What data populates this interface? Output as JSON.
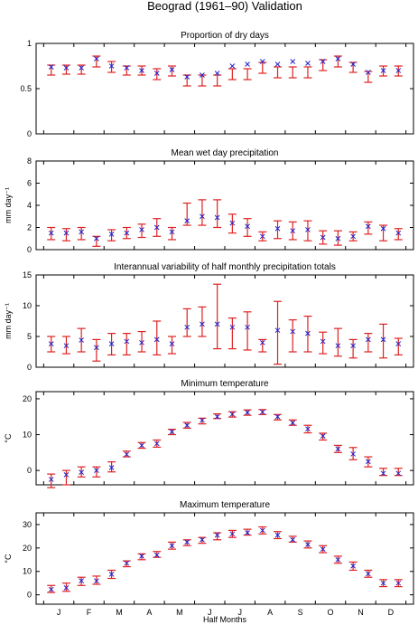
{
  "figure": {
    "title": "Beograd (1961–90) Validation",
    "xlabel": "Half Months",
    "month_labels": [
      "J",
      "F",
      "M",
      "A",
      "M",
      "J",
      "J",
      "A",
      "S",
      "O",
      "N",
      "D"
    ],
    "colors": {
      "observed_bar": "#dd2222",
      "model_marker": "#2222cc",
      "axis": "#000000"
    }
  },
  "chart_data": [
    {
      "type": "errorbar",
      "title": "Proportion of dry days",
      "ylabel": "",
      "ylim": [
        0,
        1
      ],
      "yticks": [
        0,
        0.5,
        1
      ],
      "yticklabels": [
        "0",
        "0.5",
        "1"
      ],
      "x": [
        1,
        2,
        3,
        4,
        5,
        6,
        7,
        8,
        9,
        10,
        11,
        12,
        13,
        14,
        15,
        16,
        17,
        18,
        19,
        20,
        21,
        22,
        23,
        24
      ],
      "observed": [
        {
          "low": 0.65,
          "high": 0.76
        },
        {
          "low": 0.66,
          "high": 0.76
        },
        {
          "low": 0.66,
          "high": 0.76
        },
        {
          "low": 0.74,
          "high": 0.86
        },
        {
          "low": 0.68,
          "high": 0.8
        },
        {
          "low": 0.65,
          "high": 0.75
        },
        {
          "low": 0.65,
          "high": 0.75
        },
        {
          "low": 0.6,
          "high": 0.72
        },
        {
          "low": 0.64,
          "high": 0.75
        },
        {
          "low": 0.53,
          "high": 0.65
        },
        {
          "low": 0.53,
          "high": 0.65
        },
        {
          "low": 0.53,
          "high": 0.65
        },
        {
          "low": 0.6,
          "high": 0.72
        },
        {
          "low": 0.6,
          "high": 0.72
        },
        {
          "low": 0.67,
          "high": 0.79
        },
        {
          "low": 0.62,
          "high": 0.74
        },
        {
          "low": 0.62,
          "high": 0.74
        },
        {
          "low": 0.62,
          "high": 0.74
        },
        {
          "low": 0.7,
          "high": 0.82
        },
        {
          "low": 0.74,
          "high": 0.86
        },
        {
          "low": 0.68,
          "high": 0.79
        },
        {
          "low": 0.57,
          "high": 0.69
        },
        {
          "low": 0.64,
          "high": 0.75
        },
        {
          "low": 0.64,
          "high": 0.75
        }
      ],
      "model": [
        0.74,
        0.73,
        0.73,
        0.83,
        0.75,
        0.73,
        0.7,
        0.67,
        0.71,
        0.63,
        0.65,
        0.67,
        0.75,
        0.77,
        0.8,
        0.77,
        0.8,
        0.78,
        0.8,
        0.83,
        0.77,
        0.68,
        0.7,
        0.7
      ]
    },
    {
      "type": "errorbar",
      "title": "Mean wet day precipitation",
      "ylabel": "mm day⁻¹",
      "ylim": [
        0,
        8
      ],
      "yticks": [
        0,
        2,
        4,
        6,
        8
      ],
      "yticklabels": [
        "0",
        "2",
        "4",
        "6",
        "8"
      ],
      "x": [
        1,
        2,
        3,
        4,
        5,
        6,
        7,
        8,
        9,
        10,
        11,
        12,
        13,
        14,
        15,
        16,
        17,
        18,
        19,
        20,
        21,
        22,
        23,
        24
      ],
      "observed": [
        {
          "low": 0.9,
          "high": 2.0
        },
        {
          "low": 0.8,
          "high": 1.9
        },
        {
          "low": 0.9,
          "high": 2.0
        },
        {
          "low": 0.3,
          "high": 1.2
        },
        {
          "low": 0.8,
          "high": 1.8
        },
        {
          "low": 1.0,
          "high": 2.0
        },
        {
          "low": 1.1,
          "high": 2.3
        },
        {
          "low": 1.2,
          "high": 2.8
        },
        {
          "low": 0.9,
          "high": 2.0
        },
        {
          "low": 2.2,
          "high": 4.2
        },
        {
          "low": 2.2,
          "high": 4.5
        },
        {
          "low": 2.0,
          "high": 4.5
        },
        {
          "low": 1.5,
          "high": 3.2
        },
        {
          "low": 1.2,
          "high": 2.8
        },
        {
          "low": 0.8,
          "high": 1.6
        },
        {
          "low": 1.0,
          "high": 2.6
        },
        {
          "low": 0.9,
          "high": 2.5
        },
        {
          "low": 0.8,
          "high": 2.6
        },
        {
          "low": 0.5,
          "high": 1.7
        },
        {
          "low": 0.4,
          "high": 1.7
        },
        {
          "low": 0.8,
          "high": 1.6
        },
        {
          "low": 1.4,
          "high": 2.5
        },
        {
          "low": 0.8,
          "high": 2.2
        },
        {
          "low": 0.9,
          "high": 1.9
        }
      ],
      "model": [
        1.5,
        1.5,
        1.6,
        1.0,
        1.4,
        1.5,
        1.8,
        2.0,
        1.6,
        2.6,
        3.0,
        2.9,
        2.4,
        2.1,
        1.2,
        1.9,
        1.7,
        1.8,
        1.1,
        1.0,
        1.2,
        2.1,
        1.9,
        1.5
      ]
    },
    {
      "type": "errorbar",
      "title": "Interannual variability of half monthly precipitation totals",
      "ylabel": "mm day⁻¹",
      "ylim": [
        0,
        15
      ],
      "yticks": [
        0,
        5,
        10,
        15
      ],
      "yticklabels": [
        "0",
        "5",
        "10",
        "15"
      ],
      "x": [
        1,
        2,
        3,
        4,
        5,
        6,
        7,
        8,
        9,
        10,
        11,
        12,
        13,
        14,
        15,
        16,
        17,
        18,
        19,
        20,
        21,
        22,
        23,
        24
      ],
      "observed": [
        {
          "low": 2.5,
          "high": 5.0
        },
        {
          "low": 2.2,
          "high": 5.0
        },
        {
          "low": 2.5,
          "high": 6.3
        },
        {
          "low": 1.0,
          "high": 4.5
        },
        {
          "low": 2.0,
          "high": 5.5
        },
        {
          "low": 2.0,
          "high": 5.5
        },
        {
          "low": 2.5,
          "high": 5.8
        },
        {
          "low": 2.0,
          "high": 7.5
        },
        {
          "low": 2.2,
          "high": 5.0
        },
        {
          "low": 5.0,
          "high": 9.5
        },
        {
          "low": 5.0,
          "high": 9.8
        },
        {
          "low": 3.0,
          "high": 13.5
        },
        {
          "low": 3.0,
          "high": 8.0
        },
        {
          "low": 2.8,
          "high": 9.0
        },
        {
          "low": 2.5,
          "high": 4.5
        },
        {
          "low": 0.5,
          "high": 10.7
        },
        {
          "low": 2.5,
          "high": 7.7
        },
        {
          "low": 2.5,
          "high": 8.3
        },
        {
          "low": 2.2,
          "high": 5.7
        },
        {
          "low": 1.8,
          "high": 6.3
        },
        {
          "low": 1.5,
          "high": 4.5
        },
        {
          "low": 2.5,
          "high": 5.5
        },
        {
          "low": 1.5,
          "high": 7.0
        },
        {
          "low": 2.0,
          "high": 4.7
        }
      ],
      "model": [
        3.8,
        3.5,
        4.4,
        3.2,
        3.8,
        4.2,
        4.0,
        4.5,
        3.8,
        6.5,
        7.0,
        7.0,
        6.5,
        6.5,
        4.0,
        6.0,
        5.8,
        5.5,
        4.2,
        3.5,
        3.5,
        4.5,
        4.5,
        3.8
      ]
    },
    {
      "type": "errorbar",
      "title": "Minimum temperature",
      "ylabel": "°C",
      "ylim": [
        -4,
        22
      ],
      "yticks": [
        0,
        10,
        20
      ],
      "yticklabels": [
        "0",
        "10",
        "20"
      ],
      "x": [
        1,
        2,
        3,
        4,
        5,
        6,
        7,
        8,
        9,
        10,
        11,
        12,
        13,
        14,
        15,
        16,
        17,
        18,
        19,
        20,
        21,
        22,
        23,
        24
      ],
      "observed": [
        {
          "low": -4.8,
          "high": -1.0
        },
        {
          "low": -4.0,
          "high": 0.0
        },
        {
          "low": -1.8,
          "high": 1.0
        },
        {
          "low": -1.8,
          "high": 1.0
        },
        {
          "low": -0.4,
          "high": 2.4
        },
        {
          "low": 3.8,
          "high": 5.4
        },
        {
          "low": 6.2,
          "high": 7.8
        },
        {
          "low": 6.5,
          "high": 8.5
        },
        {
          "low": 10.0,
          "high": 11.5
        },
        {
          "low": 11.8,
          "high": 13.4
        },
        {
          "low": 13.0,
          "high": 14.6
        },
        {
          "low": 14.5,
          "high": 15.8
        },
        {
          "low": 14.9,
          "high": 16.4
        },
        {
          "low": 15.4,
          "high": 16.9
        },
        {
          "low": 15.6,
          "high": 17.0
        },
        {
          "low": 14.1,
          "high": 15.6
        },
        {
          "low": 12.6,
          "high": 14.1
        },
        {
          "low": 10.5,
          "high": 12.6
        },
        {
          "low": 8.5,
          "high": 10.4
        },
        {
          "low": 5.0,
          "high": 7.0
        },
        {
          "low": 3.0,
          "high": 6.4
        },
        {
          "low": 1.0,
          "high": 3.8
        },
        {
          "low": -1.4,
          "high": 0.6
        },
        {
          "low": -1.4,
          "high": 0.6
        }
      ],
      "model": [
        -2.5,
        -1.2,
        -0.5,
        0.0,
        0.8,
        4.5,
        7.0,
        7.5,
        10.8,
        12.6,
        14.0,
        15.0,
        15.7,
        16.2,
        16.3,
        15.0,
        13.3,
        11.6,
        9.6,
        6.0,
        4.6,
        2.5,
        -0.8,
        -0.8
      ]
    },
    {
      "type": "errorbar",
      "title": "Maximum temperature",
      "ylabel": "°C",
      "ylim": [
        -4,
        35
      ],
      "yticks": [
        0,
        10,
        20,
        30
      ],
      "yticklabels": [
        "0",
        "10",
        "20",
        "30"
      ],
      "x": [
        1,
        2,
        3,
        4,
        5,
        6,
        7,
        8,
        9,
        10,
        11,
        12,
        13,
        14,
        15,
        16,
        17,
        18,
        19,
        20,
        21,
        22,
        23,
        24
      ],
      "observed": [
        {
          "low": 1.0,
          "high": 4.0
        },
        {
          "low": 1.5,
          "high": 5.0
        },
        {
          "low": 4.0,
          "high": 7.5
        },
        {
          "low": 4.5,
          "high": 8.0
        },
        {
          "low": 7.0,
          "high": 10.5
        },
        {
          "low": 12.0,
          "high": 14.5
        },
        {
          "low": 15.0,
          "high": 17.5
        },
        {
          "low": 16.0,
          "high": 18.5
        },
        {
          "low": 19.5,
          "high": 22.5
        },
        {
          "low": 21.0,
          "high": 23.5
        },
        {
          "low": 22.0,
          "high": 24.5
        },
        {
          "low": 23.5,
          "high": 26.5
        },
        {
          "low": 24.5,
          "high": 27.5
        },
        {
          "low": 25.5,
          "high": 28.0
        },
        {
          "low": 26.0,
          "high": 29.0
        },
        {
          "low": 24.0,
          "high": 27.0
        },
        {
          "low": 22.5,
          "high": 25.0
        },
        {
          "low": 20.0,
          "high": 23.0
        },
        {
          "low": 18.0,
          "high": 21.0
        },
        {
          "low": 13.5,
          "high": 16.5
        },
        {
          "low": 10.5,
          "high": 14.0
        },
        {
          "low": 7.5,
          "high": 10.5
        },
        {
          "low": 3.5,
          "high": 6.5
        },
        {
          "low": 3.5,
          "high": 6.5
        }
      ],
      "model": [
        2.3,
        3.0,
        6.0,
        6.0,
        8.8,
        13.5,
        16.5,
        17.0,
        21.0,
        22.5,
        23.5,
        25.5,
        26.0,
        26.5,
        27.5,
        25.5,
        23.5,
        21.5,
        19.5,
        15.0,
        12.3,
        9.0,
        5.0,
        5.0
      ]
    }
  ]
}
